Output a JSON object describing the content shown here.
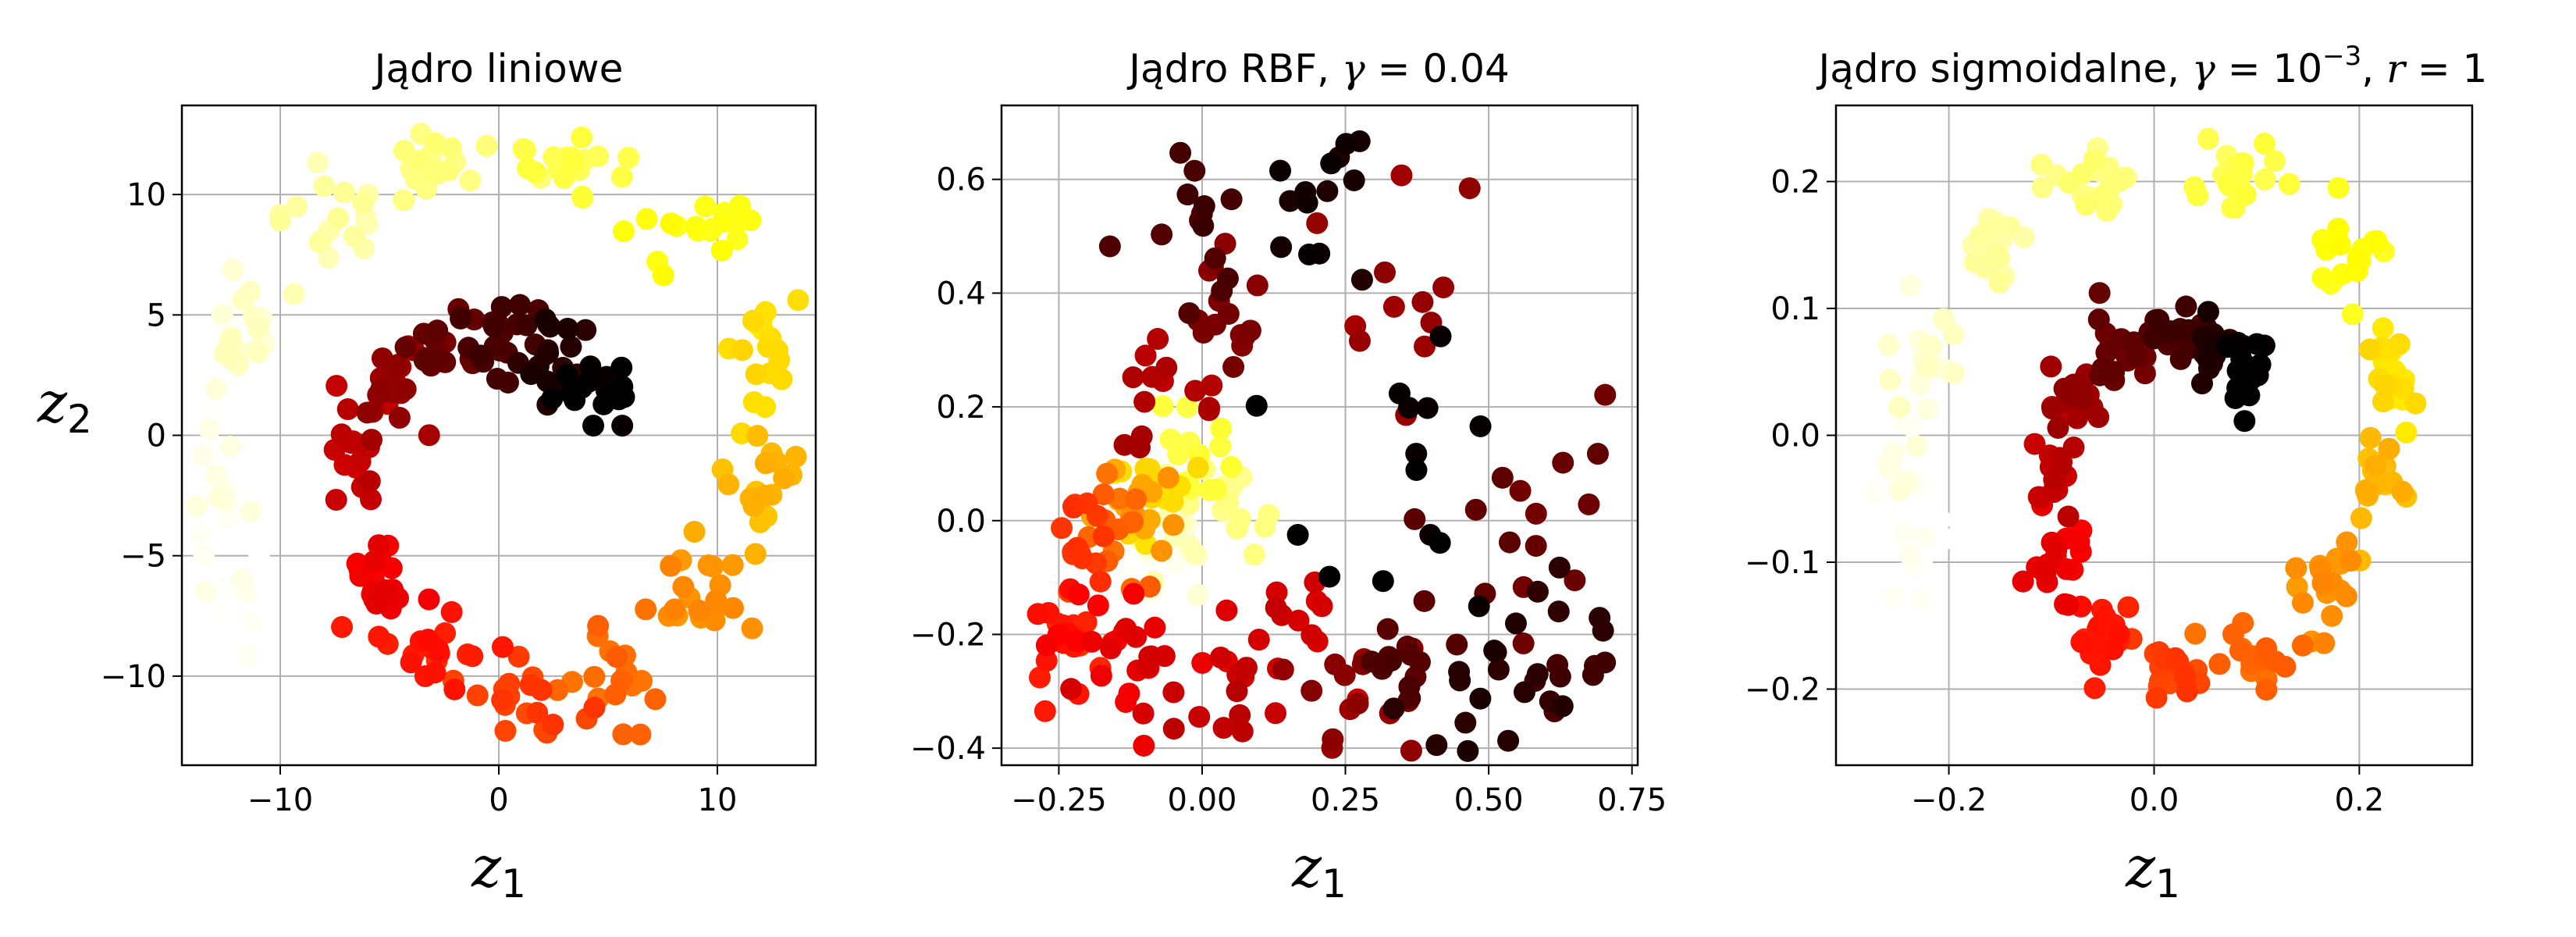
{
  "chart_data": [
    {
      "type": "scatter",
      "title": "Jądro liniowe",
      "xlabel": "z₁",
      "ylabel": "z₂",
      "xlim": [
        -14.5,
        14.5
      ],
      "ylim": [
        -13.7,
        13.7
      ],
      "xticks": [
        -10,
        0,
        10
      ],
      "yticks": [
        -10,
        -5,
        0,
        5,
        10
      ],
      "xtick_labels": [
        "−10",
        "0",
        "10"
      ],
      "ytick_labels": [
        "−10",
        "−5",
        "0",
        "5",
        "10"
      ],
      "grid": true,
      "colormap": "hot",
      "clusters": [
        {
          "t": 0.0,
          "c": [
            4.5,
            2.0
          ],
          "s": [
            1.0,
            0.9
          ],
          "n": 18
        },
        {
          "t": 0.05,
          "c": [
            2.5,
            3.2
          ],
          "s": [
            1.0,
            0.8
          ],
          "n": 18
        },
        {
          "t": 0.1,
          "c": [
            0.0,
            4.0
          ],
          "s": [
            1.2,
            0.8
          ],
          "n": 20
        },
        {
          "t": 0.15,
          "c": [
            -2.5,
            3.5
          ],
          "s": [
            1.0,
            0.9
          ],
          "n": 18
        },
        {
          "t": 0.22,
          "c": [
            -5.0,
            2.0
          ],
          "s": [
            0.9,
            0.9
          ],
          "n": 18
        },
        {
          "t": 0.28,
          "c": [
            -6.5,
            -1.0
          ],
          "s": [
            0.6,
            1.2
          ],
          "n": 18
        },
        {
          "t": 0.34,
          "c": [
            -5.5,
            -5.5
          ],
          "s": [
            0.8,
            1.2
          ],
          "n": 18
        },
        {
          "t": 0.4,
          "c": [
            -3.0,
            -9.0
          ],
          "s": [
            1.2,
            0.9
          ],
          "n": 18
        },
        {
          "t": 0.46,
          "c": [
            1.0,
            -11.0
          ],
          "s": [
            1.5,
            0.8
          ],
          "n": 20
        },
        {
          "t": 0.52,
          "c": [
            5.5,
            -10.0
          ],
          "s": [
            1.2,
            1.0
          ],
          "n": 18
        },
        {
          "t": 0.58,
          "c": [
            9.5,
            -6.5
          ],
          "s": [
            1.2,
            1.2
          ],
          "n": 18
        },
        {
          "t": 0.64,
          "c": [
            12.0,
            -2.0
          ],
          "s": [
            0.9,
            1.3
          ],
          "n": 18
        },
        {
          "t": 0.7,
          "c": [
            11.5,
            3.5
          ],
          "s": [
            1.0,
            1.3
          ],
          "n": 18
        },
        {
          "t": 0.76,
          "c": [
            8.5,
            8.5
          ],
          "s": [
            1.3,
            1.1
          ],
          "n": 18
        },
        {
          "t": 0.82,
          "c": [
            3.0,
            11.0
          ],
          "s": [
            1.5,
            0.8
          ],
          "n": 20
        },
        {
          "t": 0.87,
          "c": [
            -3.0,
            11.0
          ],
          "s": [
            1.5,
            0.8
          ],
          "n": 20
        },
        {
          "t": 0.91,
          "c": [
            -8.0,
            9.0
          ],
          "s": [
            1.3,
            1.1
          ],
          "n": 18
        },
        {
          "t": 0.95,
          "c": [
            -12.0,
            4.0
          ],
          "s": [
            1.0,
            1.4
          ],
          "n": 18
        },
        {
          "t": 0.98,
          "c": [
            -13.0,
            -2.0
          ],
          "s": [
            0.7,
            1.5
          ],
          "n": 16
        },
        {
          "t": 1.0,
          "c": [
            -12.0,
            -6.5
          ],
          "s": [
            0.8,
            1.2
          ],
          "n": 12
        }
      ]
    },
    {
      "type": "scatter",
      "title": "Jądro RBF, γ = 0.04",
      "xlabel": "z₁",
      "ylabel": "",
      "xlim": [
        -0.35,
        0.76
      ],
      "ylim": [
        -0.43,
        0.73
      ],
      "xticks": [
        -0.25,
        0,
        0.25,
        0.5,
        0.75
      ],
      "yticks": [
        -0.4,
        -0.2,
        0,
        0.2,
        0.4,
        0.6
      ],
      "xtick_labels": [
        "−0.25",
        "0.00",
        "0.25",
        "0.50",
        "0.75"
      ],
      "ytick_labels": [
        "−0.4",
        "−0.2",
        "0.0",
        "0.2",
        "0.4",
        "0.6"
      ],
      "grid": true,
      "colormap": "hot",
      "clusters": [
        {
          "t": 0.0,
          "c": [
            0.38,
            0.05
          ],
          "s": [
            0.1,
            0.15
          ],
          "n": 14
        },
        {
          "t": 0.03,
          "c": [
            0.2,
            0.55
          ],
          "s": [
            0.08,
            0.07
          ],
          "n": 14
        },
        {
          "t": 0.05,
          "c": [
            0.5,
            -0.3
          ],
          "s": [
            0.08,
            0.05
          ],
          "n": 14
        },
        {
          "t": 0.08,
          "c": [
            0.62,
            -0.2
          ],
          "s": [
            0.05,
            0.1
          ],
          "n": 14
        },
        {
          "t": 0.1,
          "c": [
            0.0,
            0.55
          ],
          "s": [
            0.04,
            0.08
          ],
          "n": 14
        },
        {
          "t": 0.12,
          "c": [
            0.35,
            -0.25
          ],
          "s": [
            0.08,
            0.08
          ],
          "n": 14
        },
        {
          "t": 0.15,
          "c": [
            0.55,
            0.05
          ],
          "s": [
            0.06,
            0.15
          ],
          "n": 14
        },
        {
          "t": 0.18,
          "c": [
            0.02,
            0.35
          ],
          "s": [
            0.05,
            0.07
          ],
          "n": 14
        },
        {
          "t": 0.2,
          "c": [
            0.25,
            -0.3
          ],
          "s": [
            0.1,
            0.05
          ],
          "n": 14
        },
        {
          "t": 0.22,
          "c": [
            0.3,
            0.35
          ],
          "s": [
            0.1,
            0.15
          ],
          "n": 12
        },
        {
          "t": 0.25,
          "c": [
            -0.05,
            0.2
          ],
          "s": [
            0.05,
            0.07
          ],
          "n": 14
        },
        {
          "t": 0.28,
          "c": [
            0.05,
            -0.3
          ],
          "s": [
            0.08,
            0.05
          ],
          "n": 14
        },
        {
          "t": 0.3,
          "c": [
            0.18,
            -0.15
          ],
          "s": [
            0.06,
            0.05
          ],
          "n": 10
        },
        {
          "t": 0.32,
          "c": [
            -0.1,
            -0.25
          ],
          "s": [
            0.08,
            0.05
          ],
          "n": 16
        },
        {
          "t": 0.36,
          "c": [
            -0.2,
            -0.18
          ],
          "s": [
            0.05,
            0.05
          ],
          "n": 16
        },
        {
          "t": 0.4,
          "c": [
            -0.24,
            -0.2
          ],
          "s": [
            0.03,
            0.04
          ],
          "n": 14
        },
        {
          "t": 0.45,
          "c": [
            -0.2,
            -0.05
          ],
          "s": [
            0.04,
            0.06
          ],
          "n": 16
        },
        {
          "t": 0.52,
          "c": [
            -0.15,
            -0.02
          ],
          "s": [
            0.05,
            0.05
          ],
          "n": 14
        },
        {
          "t": 0.6,
          "c": [
            -0.12,
            0.02
          ],
          "s": [
            0.04,
            0.04
          ],
          "n": 14
        },
        {
          "t": 0.7,
          "c": [
            -0.08,
            0.05
          ],
          "s": [
            0.04,
            0.05
          ],
          "n": 14
        },
        {
          "t": 0.8,
          "c": [
            -0.02,
            0.12
          ],
          "s": [
            0.04,
            0.05
          ],
          "n": 14
        },
        {
          "t": 0.88,
          "c": [
            0.05,
            0.02
          ],
          "s": [
            0.05,
            0.05
          ],
          "n": 14
        },
        {
          "t": 0.94,
          "c": [
            -0.05,
            -0.05
          ],
          "s": [
            0.05,
            0.04
          ],
          "n": 12
        },
        {
          "t": 1.0,
          "c": [
            -0.08,
            -0.1
          ],
          "s": [
            0.04,
            0.03
          ],
          "n": 10
        }
      ]
    },
    {
      "type": "scatter",
      "title": "Jądro sigmoidalne, γ = 10⁻³, r = 1",
      "xlabel": "z₁",
      "ylabel": "",
      "xlim": [
        -0.31,
        0.31
      ],
      "ylim": [
        -0.26,
        0.26
      ],
      "xticks": [
        -0.2,
        0,
        0.2
      ],
      "yticks": [
        -0.2,
        -0.1,
        0,
        0.1,
        0.2
      ],
      "xtick_labels": [
        "−0.2",
        "0.0",
        "0.2"
      ],
      "ytick_labels": [
        "−0.2",
        "−0.1",
        "0.0",
        "0.1",
        "0.2"
      ],
      "grid": true,
      "colormap": "hot",
      "clusters": [
        {
          "t": 0.0,
          "c": [
            0.09,
            0.05
          ],
          "s": [
            0.012,
            0.012
          ],
          "n": 18
        },
        {
          "t": 0.05,
          "c": [
            0.06,
            0.07
          ],
          "s": [
            0.012,
            0.012
          ],
          "n": 18
        },
        {
          "t": 0.1,
          "c": [
            0.02,
            0.08
          ],
          "s": [
            0.015,
            0.01
          ],
          "n": 18
        },
        {
          "t": 0.15,
          "c": [
            -0.03,
            0.07
          ],
          "s": [
            0.015,
            0.012
          ],
          "n": 18
        },
        {
          "t": 0.22,
          "c": [
            -0.08,
            0.03
          ],
          "s": [
            0.012,
            0.015
          ],
          "n": 18
        },
        {
          "t": 0.28,
          "c": [
            -0.1,
            -0.03
          ],
          "s": [
            0.01,
            0.02
          ],
          "n": 18
        },
        {
          "t": 0.34,
          "c": [
            -0.09,
            -0.1
          ],
          "s": [
            0.012,
            0.02
          ],
          "n": 18
        },
        {
          "t": 0.4,
          "c": [
            -0.05,
            -0.16
          ],
          "s": [
            0.015,
            0.015
          ],
          "n": 18
        },
        {
          "t": 0.46,
          "c": [
            0.02,
            -0.19
          ],
          "s": [
            0.02,
            0.012
          ],
          "n": 20
        },
        {
          "t": 0.52,
          "c": [
            0.1,
            -0.17
          ],
          "s": [
            0.018,
            0.015
          ],
          "n": 18
        },
        {
          "t": 0.58,
          "c": [
            0.17,
            -0.12
          ],
          "s": [
            0.018,
            0.02
          ],
          "n": 18
        },
        {
          "t": 0.64,
          "c": [
            0.22,
            -0.04
          ],
          "s": [
            0.015,
            0.02
          ],
          "n": 18
        },
        {
          "t": 0.7,
          "c": [
            0.23,
            0.05
          ],
          "s": [
            0.015,
            0.02
          ],
          "n": 18
        },
        {
          "t": 0.76,
          "c": [
            0.19,
            0.14
          ],
          "s": [
            0.018,
            0.02
          ],
          "n": 18
        },
        {
          "t": 0.82,
          "c": [
            0.08,
            0.2
          ],
          "s": [
            0.025,
            0.015
          ],
          "n": 20
        },
        {
          "t": 0.87,
          "c": [
            -0.05,
            0.2
          ],
          "s": [
            0.025,
            0.015
          ],
          "n": 20
        },
        {
          "t": 0.91,
          "c": [
            -0.15,
            0.15
          ],
          "s": [
            0.02,
            0.018
          ],
          "n": 18
        },
        {
          "t": 0.95,
          "c": [
            -0.22,
            0.07
          ],
          "s": [
            0.015,
            0.02
          ],
          "n": 18
        },
        {
          "t": 0.98,
          "c": [
            -0.24,
            -0.03
          ],
          "s": [
            0.012,
            0.025
          ],
          "n": 16
        },
        {
          "t": 1.0,
          "c": [
            -0.23,
            -0.1
          ],
          "s": [
            0.012,
            0.02
          ],
          "n": 12
        }
      ]
    }
  ]
}
